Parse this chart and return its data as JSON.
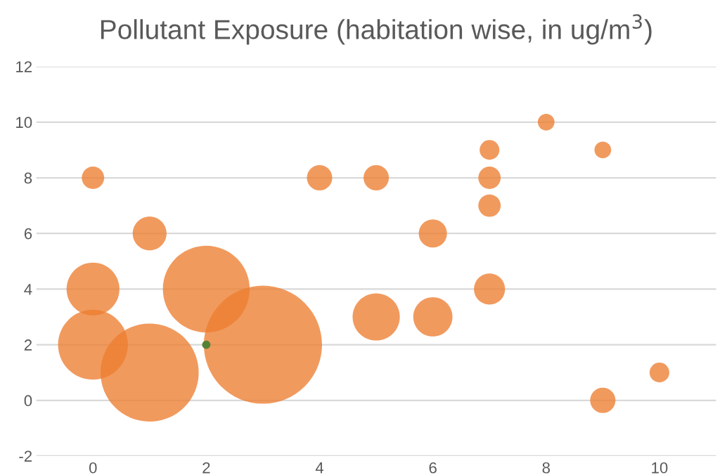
{
  "chart_data": {
    "type": "bubble",
    "title": "Pollutant Exposure (habitation wise, in ug/m$^{3}$)",
    "series": [
      {
        "color": "#ed7d31",
        "x": [
          0,
          1,
          0,
          0,
          1,
          2,
          3,
          4,
          5,
          5,
          6,
          6,
          7,
          7,
          7,
          7,
          8,
          9,
          9,
          10
        ],
        "values": [
          8,
          6,
          4,
          2,
          1,
          4,
          2,
          8,
          8,
          3,
          6,
          3,
          9,
          8,
          7,
          4,
          10,
          9,
          0,
          1
        ],
        "sizes": [
          0.036,
          0.082,
          0.2,
          0.35,
          0.69,
          0.54,
          1,
          0.046,
          0.046,
          0.16,
          0.057,
          0.11,
          0.028,
          0.036,
          0.036,
          0.069,
          0.02,
          0.02,
          0.046,
          0.028
        ]
      },
      {
        "color": "#548235",
        "x": [
          2
        ],
        "values": [
          2
        ],
        "sizes": [
          0.005
        ]
      }
    ],
    "xlim": [
      -1,
      11
    ],
    "xticks": [
      0,
      2,
      4,
      6,
      8,
      10
    ],
    "ylim": [
      -2,
      12
    ],
    "yticks": [
      -2,
      0,
      2,
      4,
      6,
      8,
      10,
      12
    ],
    "grid": "y",
    "legend": false
  }
}
